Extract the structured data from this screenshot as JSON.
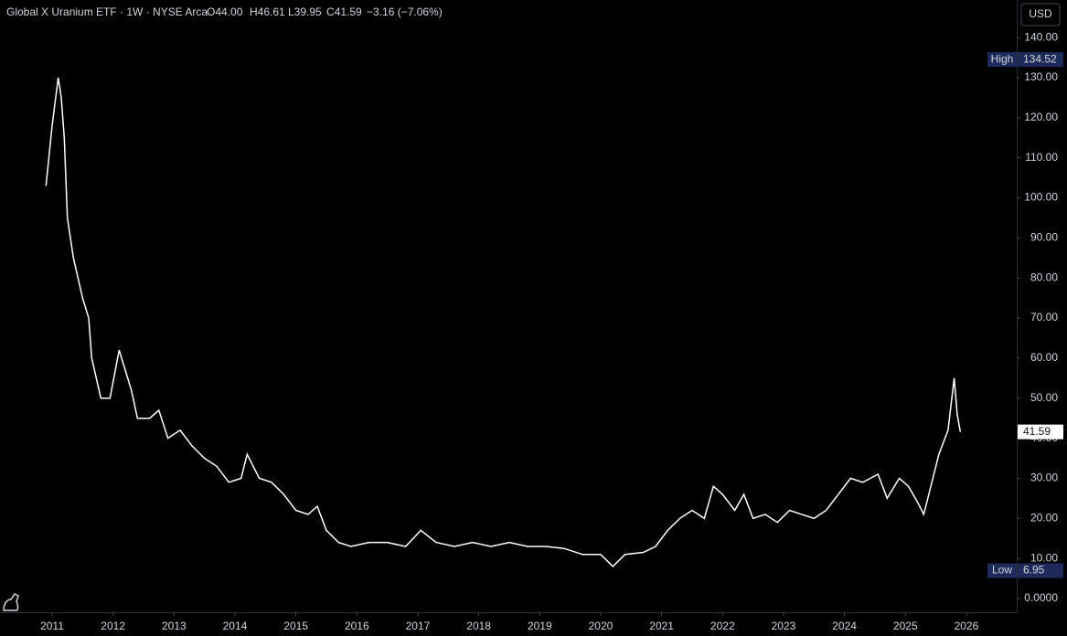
{
  "header": {
    "title": "Global X Uranium ETF · 1W · NYSE Arca",
    "ohlc": [
      "O44.00",
      "H46.61",
      "L39.95",
      "C41.59"
    ],
    "change": "−3.16 (−7.06%)"
  },
  "chart_data": {
    "type": "line",
    "currency": "USD",
    "color": "#ffffff",
    "x": [
      2010.9,
      2011.0,
      2011.05,
      2011.1,
      2011.15,
      2011.2,
      2011.25,
      2011.35,
      2011.5,
      2011.6,
      2011.65,
      2011.8,
      2011.95,
      2012.1,
      2012.3,
      2012.4,
      2012.6,
      2012.75,
      2012.9,
      2013.1,
      2013.3,
      2013.5,
      2013.7,
      2013.9,
      2014.1,
      2014.2,
      2014.4,
      2014.6,
      2014.8,
      2015.0,
      2015.2,
      2015.35,
      2015.5,
      2015.7,
      2015.9,
      2016.2,
      2016.5,
      2016.8,
      2017.05,
      2017.3,
      2017.6,
      2017.9,
      2018.2,
      2018.5,
      2018.8,
      2019.1,
      2019.4,
      2019.7,
      2020.0,
      2020.2,
      2020.4,
      2020.7,
      2020.9,
      2021.1,
      2021.3,
      2021.5,
      2021.7,
      2021.85,
      2022.0,
      2022.2,
      2022.35,
      2022.5,
      2022.7,
      2022.9,
      2023.1,
      2023.3,
      2023.5,
      2023.7,
      2023.9,
      2024.1,
      2024.3,
      2024.55,
      2024.7,
      2024.9,
      2025.05,
      2025.2,
      2025.3,
      2025.45,
      2025.55,
      2025.7,
      2025.8,
      2025.85,
      2025.9
    ],
    "values": [
      103,
      118,
      124,
      130,
      125,
      115,
      95,
      85,
      75,
      70,
      60,
      50,
      50,
      62,
      52,
      45,
      45,
      47,
      40,
      42,
      38,
      35,
      33,
      29,
      30,
      36,
      30,
      29,
      26,
      22,
      21,
      23,
      17,
      14,
      13,
      14,
      14,
      13,
      17,
      14,
      13,
      14,
      13,
      14,
      13,
      13,
      12.5,
      11,
      11,
      8,
      11,
      11.5,
      13,
      17,
      20,
      22,
      20,
      28,
      26,
      22,
      26,
      20,
      21,
      19,
      22,
      21,
      20,
      22,
      26,
      30,
      29,
      31,
      25,
      30,
      28,
      24,
      21,
      30,
      36,
      42,
      55,
      46,
      41.59
    ],
    "xlim": [
      2010.145,
      2026.826
    ],
    "xticks": [
      2011,
      2012,
      2013,
      2014,
      2015,
      2016,
      2017,
      2018,
      2019,
      2020,
      2021,
      2022,
      2023,
      2024,
      2025,
      2026
    ],
    "ylim": [
      -3.43,
      149.38
    ],
    "yticks": [
      {
        "value": 0,
        "label": "0.0000"
      },
      {
        "value": 10,
        "label": "10.00"
      },
      {
        "value": 20,
        "label": "20.00"
      },
      {
        "value": 30,
        "label": "30.00"
      },
      {
        "value": 40,
        "label": "40.00"
      },
      {
        "value": 50,
        "label": "50.00"
      },
      {
        "value": 60,
        "label": "60.00"
      },
      {
        "value": 70,
        "label": "70.00"
      },
      {
        "value": 80,
        "label": "80.00"
      },
      {
        "value": 90,
        "label": "90.00"
      },
      {
        "value": 100,
        "label": "100.00"
      },
      {
        "value": 110,
        "label": "110.00"
      },
      {
        "value": 120,
        "label": "120.00"
      },
      {
        "value": 130,
        "label": "130.00"
      },
      {
        "value": 140,
        "label": "140.00"
      }
    ],
    "high": {
      "label": "High",
      "value": 134.52
    },
    "low": {
      "label": "Low",
      "value": 6.95
    },
    "last": 41.59
  }
}
